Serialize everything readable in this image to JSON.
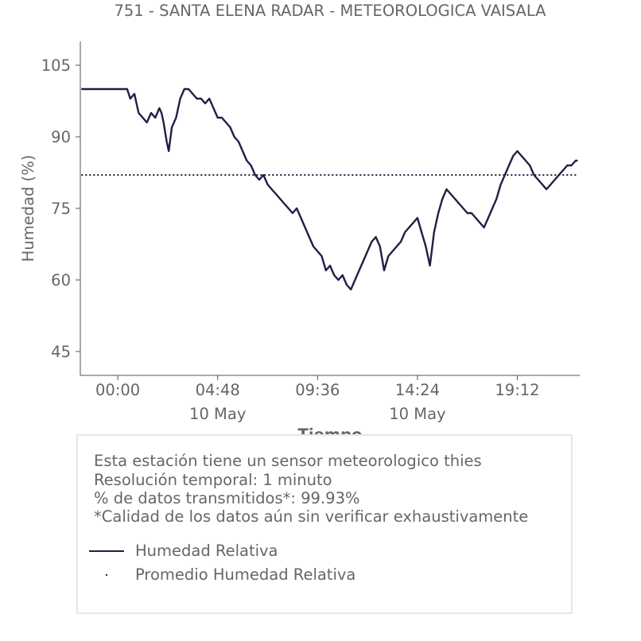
{
  "chart_data": {
    "type": "line",
    "title": "751 - SANTA ELENA RADAR - METEOROLOGICA VAISALA",
    "xlabel": "Tiempo",
    "ylabel": "Humedad (%)",
    "ylim": [
      40,
      110
    ],
    "xlim": [
      -1.8,
      22.2
    ],
    "x_ticks": [
      {
        "x": 0,
        "label": "00:00",
        "sublabel": ""
      },
      {
        "x": 4.8,
        "label": "04:48",
        "sublabel": "10 May"
      },
      {
        "x": 9.6,
        "label": "09:36",
        "sublabel": ""
      },
      {
        "x": 14.4,
        "label": "14:24",
        "sublabel": "10 May"
      },
      {
        "x": 19.2,
        "label": "19:12",
        "sublabel": ""
      }
    ],
    "y_ticks": [
      45,
      60,
      75,
      90,
      105
    ],
    "grid": false,
    "legend_position": "bottom",
    "series": [
      {
        "name": "Humedad Relativa",
        "color": "#1f2044",
        "style": "solid",
        "x": [
          -1.75,
          -1.2,
          -0.6,
          0,
          0.3,
          0.45,
          0.6,
          0.8,
          1.0,
          1.2,
          1.4,
          1.6,
          1.8,
          2.0,
          2.1,
          2.2,
          2.35,
          2.45,
          2.6,
          2.8,
          3.0,
          3.2,
          3.4,
          3.6,
          3.8,
          4.0,
          4.2,
          4.4,
          4.6,
          4.8,
          5.0,
          5.2,
          5.4,
          5.6,
          5.8,
          6.0,
          6.2,
          6.4,
          6.6,
          6.8,
          7.0,
          7.2,
          7.4,
          7.6,
          7.8,
          8.0,
          8.2,
          8.4,
          8.6,
          8.8,
          9.0,
          9.2,
          9.4,
          9.6,
          9.8,
          10.0,
          10.2,
          10.4,
          10.6,
          10.8,
          11.0,
          11.2,
          11.4,
          11.6,
          11.8,
          12.0,
          12.2,
          12.4,
          12.6,
          12.8,
          13.0,
          13.2,
          13.4,
          13.6,
          13.8,
          14.0,
          14.2,
          14.4,
          14.6,
          14.8,
          15.0,
          15.2,
          15.4,
          15.6,
          15.8,
          16.0,
          16.2,
          16.4,
          16.6,
          16.8,
          17.0,
          17.2,
          17.4,
          17.6,
          17.8,
          18.0,
          18.2,
          18.4,
          18.6,
          18.8,
          19.0,
          19.2,
          19.4,
          19.6,
          19.8,
          20.0,
          20.2,
          20.4,
          20.6,
          20.8,
          21.0,
          21.2,
          21.4,
          21.6,
          21.8,
          22.0,
          22.1
        ],
        "values": [
          100,
          100,
          100,
          100,
          100,
          100,
          98,
          99,
          95,
          94,
          93,
          95,
          94,
          96,
          95,
          93,
          89,
          87,
          92,
          94,
          98,
          100,
          100,
          99,
          98,
          98,
          97,
          98,
          96,
          94,
          94,
          93,
          92,
          90,
          89,
          87,
          85,
          84,
          82,
          81,
          82,
          80,
          79,
          78,
          77,
          76,
          75,
          74,
          75,
          73,
          71,
          69,
          67,
          66,
          65,
          62,
          63,
          61,
          60,
          61,
          59,
          58,
          60,
          62,
          64,
          66,
          68,
          69,
          67,
          62,
          65,
          66,
          67,
          68,
          70,
          71,
          72,
          73,
          70,
          67,
          63,
          70,
          74,
          77,
          79,
          78,
          77,
          76,
          75,
          74,
          74,
          73,
          72,
          71,
          73,
          75,
          77,
          80,
          82,
          84,
          86,
          87,
          86,
          85,
          84,
          82,
          81,
          80,
          79,
          80,
          81,
          82,
          83,
          84,
          84,
          85,
          85
        ]
      },
      {
        "name": "Promedio Humedad Relativa",
        "color": "#1f2044",
        "style": "dotted",
        "x": [
          -1.75,
          22.1
        ],
        "values": [
          82,
          82
        ]
      }
    ]
  },
  "info": {
    "line1": "Esta estación tiene un sensor meteorologico thies",
    "line2": "Resolución temporal: 1 minuto",
    "line3": "% de datos transmitidos*: 99.93%",
    "line4": "*Calidad de los datos aún sin verificar exhaustivamente"
  }
}
